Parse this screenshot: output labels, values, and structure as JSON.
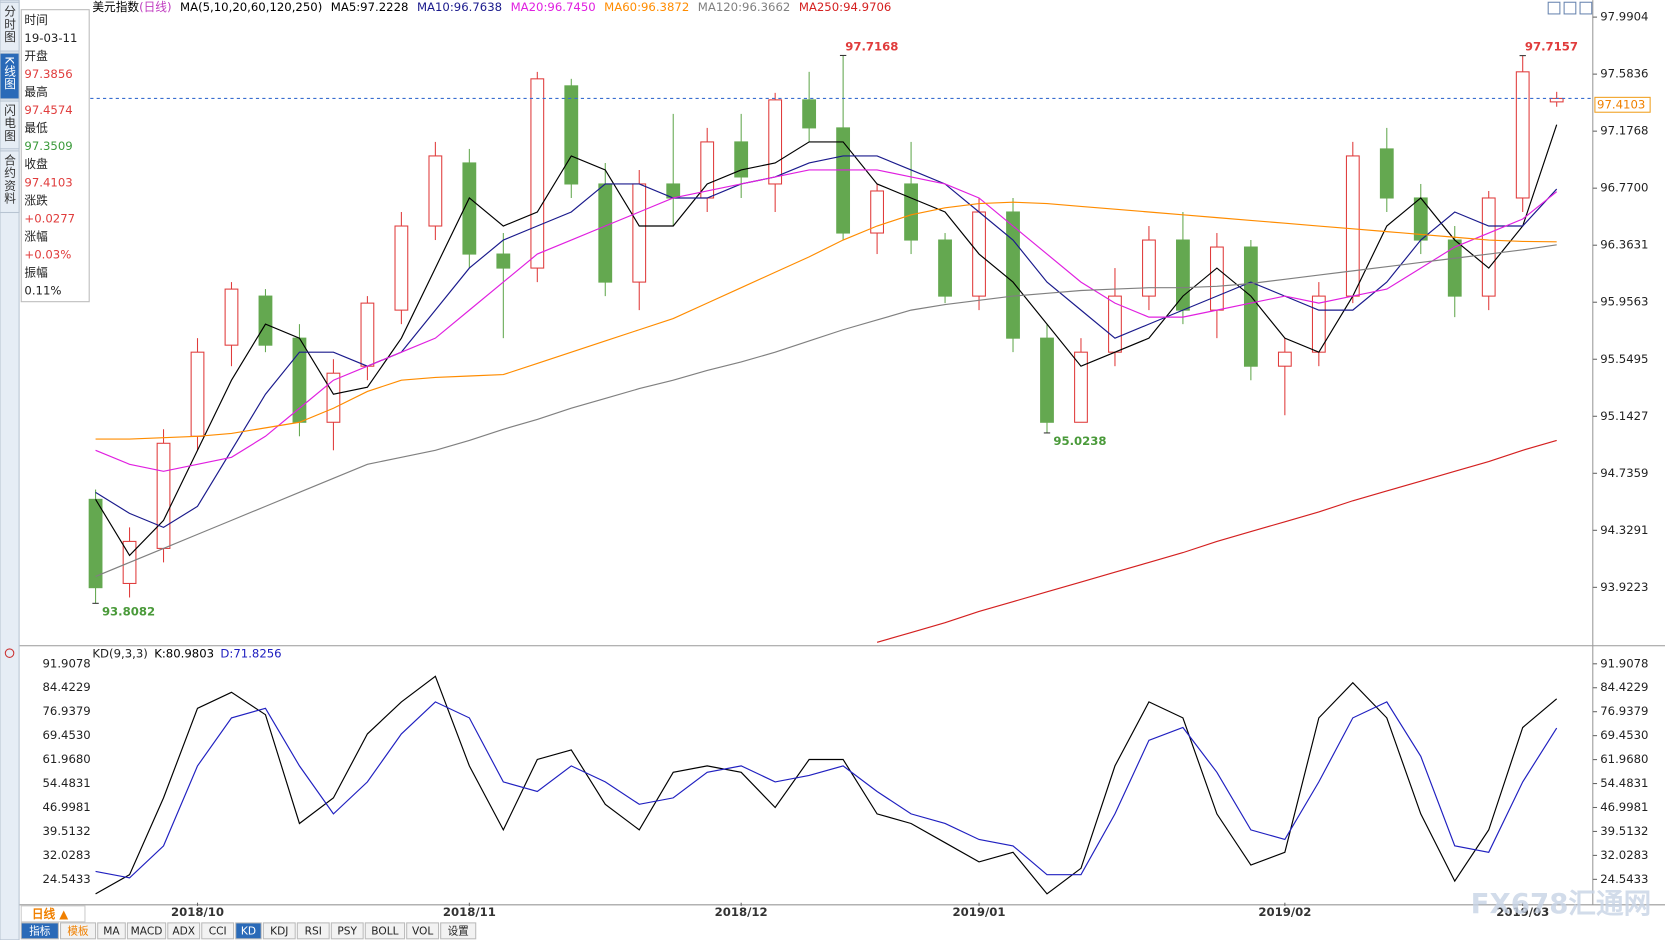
{
  "header": {
    "title": "美元指数",
    "period": "(日线)",
    "ma_params": "MA(5,10,20,60,120,250)"
  },
  "side_tabs": [
    "分时图",
    "K线图",
    "闪电图",
    "合约资料"
  ],
  "info_panel": {
    "time_label": "时间",
    "time": "19-03-11",
    "open_label": "开盘",
    "high_label": "最高",
    "low_label": "最低",
    "close_label": "收盘",
    "change_label": "涨跌",
    "change": "+0.0277",
    "pct_label": "涨幅",
    "pct": "+0.03%",
    "amp_label": "振幅",
    "amp": "0.11%"
  },
  "chart_data": [
    {
      "type": "candlestick",
      "categories": [
        null,
        null,
        null,
        "2018/10",
        null,
        null,
        null,
        null,
        null,
        null,
        null,
        "2018/11",
        null,
        null,
        null,
        null,
        null,
        null,
        null,
        "2018/12",
        null,
        null,
        null,
        null,
        null,
        null,
        "2019/01",
        null,
        null,
        null,
        null,
        null,
        null,
        null,
        null,
        "2019/02",
        null,
        null,
        null,
        null,
        null,
        null,
        "2019/03",
        null
      ],
      "candles": [
        [
          94.55,
          94.62,
          93.8082,
          93.92
        ],
        [
          93.95,
          94.35,
          93.85,
          94.25
        ],
        [
          94.2,
          95.05,
          94.1,
          94.95
        ],
        [
          95.0,
          95.7,
          94.9,
          95.6
        ],
        [
          95.65,
          96.1,
          95.5,
          96.05
        ],
        [
          96.0,
          96.05,
          95.6,
          95.65
        ],
        [
          95.7,
          95.8,
          95.0,
          95.1
        ],
        [
          95.1,
          95.55,
          94.9,
          95.45
        ],
        [
          95.5,
          96.0,
          95.4,
          95.95
        ],
        [
          95.9,
          96.6,
          95.8,
          96.5
        ],
        [
          96.5,
          97.1,
          96.4,
          97.0
        ],
        [
          96.95,
          97.05,
          96.2,
          96.3
        ],
        [
          96.3,
          96.45,
          95.7,
          96.2
        ],
        [
          96.2,
          97.6,
          96.1,
          97.55
        ],
        [
          97.5,
          97.55,
          96.7,
          96.8
        ],
        [
          96.8,
          96.95,
          96.0,
          96.1
        ],
        [
          96.1,
          96.9,
          95.9,
          96.8
        ],
        [
          96.8,
          97.3,
          96.5,
          96.7
        ],
        [
          96.7,
          97.2,
          96.6,
          97.1
        ],
        [
          97.1,
          97.3,
          96.7,
          96.85
        ],
        [
          96.8,
          97.45,
          96.6,
          97.4
        ],
        [
          97.4,
          97.6,
          97.1,
          97.2
        ],
        [
          97.2,
          97.7168,
          96.4,
          96.45
        ],
        [
          96.45,
          96.8,
          96.3,
          96.75
        ],
        [
          96.8,
          97.1,
          96.3,
          96.4
        ],
        [
          96.4,
          96.45,
          95.95,
          96.0
        ],
        [
          96.0,
          96.7,
          95.9,
          96.6
        ],
        [
          96.6,
          96.7,
          95.6,
          95.7
        ],
        [
          95.7,
          95.8,
          95.0238,
          95.1
        ],
        [
          95.1,
          95.7,
          95.1,
          95.6
        ],
        [
          95.6,
          96.2,
          95.5,
          96.0
        ],
        [
          96.0,
          96.5,
          95.9,
          96.4
        ],
        [
          96.4,
          96.6,
          95.8,
          95.9
        ],
        [
          95.9,
          96.45,
          95.7,
          96.35
        ],
        [
          96.35,
          96.4,
          95.4,
          95.5
        ],
        [
          95.5,
          95.7,
          95.15,
          95.6
        ],
        [
          95.6,
          96.1,
          95.5,
          96.0
        ],
        [
          96.0,
          97.1,
          95.95,
          97.0
        ],
        [
          97.05,
          97.2,
          96.6,
          96.7
        ],
        [
          96.7,
          96.8,
          96.3,
          96.4
        ],
        [
          96.4,
          96.5,
          95.85,
          96.0
        ],
        [
          96.0,
          96.75,
          95.9,
          96.7
        ],
        [
          96.7,
          97.7157,
          96.6,
          97.6
        ],
        [
          97.3856,
          97.4574,
          97.3509,
          97.4103
        ]
      ],
      "up_color": "#e03c3c",
      "down_color": "#64a850",
      "ylim": [
        93.5284,
        98.0055
      ],
      "yticks": [
        97.9904,
        97.5836,
        97.1768,
        {
          "value": 96.77,
          "label": "96.7700"
        },
        96.3631,
        95.9563,
        95.5495,
        95.1427,
        94.7359,
        94.3291,
        93.9223
      ],
      "grid": false,
      "series": [
        {
          "name": "MA5:97.2228",
          "color": "#000000",
          "values": [
            94.55,
            94.15,
            94.4,
            94.9,
            95.4,
            95.8,
            95.7,
            95.3,
            95.35,
            95.7,
            96.2,
            96.7,
            96.5,
            96.6,
            97.0,
            96.9,
            96.5,
            96.5,
            96.8,
            96.9,
            96.95,
            97.1,
            97.1,
            96.8,
            96.7,
            96.6,
            96.3,
            96.1,
            95.8,
            95.5,
            95.6,
            95.7,
            96.0,
            96.2,
            96.0,
            95.7,
            95.6,
            96.0,
            96.5,
            96.7,
            96.4,
            96.2,
            96.5,
            97.2228
          ]
        },
        {
          "name": "MA10:96.7638",
          "color": "#1a1a8c",
          "values": [
            94.6,
            94.45,
            94.35,
            94.5,
            94.9,
            95.3,
            95.6,
            95.6,
            95.5,
            95.6,
            95.9,
            96.2,
            96.4,
            96.5,
            96.6,
            96.8,
            96.8,
            96.7,
            96.7,
            96.8,
            96.85,
            96.95,
            97.0,
            97.0,
            96.9,
            96.8,
            96.6,
            96.4,
            96.1,
            95.9,
            95.7,
            95.8,
            95.9,
            96.0,
            96.1,
            96.0,
            95.9,
            95.9,
            96.1,
            96.4,
            96.6,
            96.5,
            96.5,
            96.7638
          ]
        },
        {
          "name": "MA20:96.7450",
          "color": "#e020e0",
          "values": [
            94.9,
            94.8,
            94.75,
            94.8,
            94.85,
            95.0,
            95.2,
            95.4,
            95.5,
            95.6,
            95.7,
            95.9,
            96.1,
            96.3,
            96.4,
            96.5,
            96.6,
            96.7,
            96.75,
            96.8,
            96.85,
            96.9,
            96.9,
            96.9,
            96.85,
            96.8,
            96.7,
            96.5,
            96.3,
            96.1,
            95.95,
            95.85,
            95.85,
            95.9,
            95.95,
            96.0,
            95.95,
            96.0,
            96.05,
            96.2,
            96.35,
            96.45,
            96.55,
            96.745
          ]
        },
        {
          "name": "MA60:96.3872",
          "color": "#ff8c00",
          "values": [
            94.98,
            94.98,
            94.99,
            95.0,
            95.02,
            95.06,
            95.1,
            95.2,
            95.32,
            95.4,
            95.42,
            95.43,
            95.44,
            95.52,
            95.6,
            95.68,
            95.76,
            95.84,
            95.95,
            96.06,
            96.17,
            96.28,
            96.4,
            96.5,
            96.58,
            96.63,
            96.66,
            96.67,
            96.66,
            96.64,
            96.62,
            96.6,
            96.58,
            96.56,
            96.54,
            96.52,
            96.5,
            96.48,
            96.46,
            96.44,
            96.42,
            96.4,
            96.39,
            96.3872
          ]
        },
        {
          "name": "MA120:96.3662",
          "color": "#808080",
          "values": [
            94.0,
            94.1,
            94.2,
            94.3,
            94.4,
            94.5,
            94.6,
            94.7,
            94.8,
            94.85,
            94.9,
            94.97,
            95.05,
            95.12,
            95.2,
            95.27,
            95.34,
            95.4,
            95.47,
            95.53,
            95.6,
            95.68,
            95.76,
            95.83,
            95.9,
            95.94,
            95.97,
            96.0,
            96.02,
            96.04,
            96.05,
            96.06,
            96.06,
            96.07,
            96.09,
            96.12,
            96.15,
            96.18,
            96.21,
            96.24,
            96.27,
            96.3,
            96.33,
            96.3662
          ]
        },
        {
          "name": "MA250:94.9706",
          "color": "#d42020",
          "values": [
            null,
            null,
            null,
            null,
            null,
            null,
            null,
            null,
            null,
            null,
            null,
            null,
            null,
            null,
            null,
            null,
            null,
            null,
            null,
            null,
            null,
            null,
            null,
            93.53,
            93.6,
            93.67,
            93.75,
            93.82,
            93.89,
            93.96,
            94.03,
            94.1,
            94.17,
            94.25,
            94.32,
            94.39,
            94.46,
            94.54,
            94.61,
            94.68,
            94.75,
            94.82,
            94.9,
            94.9706
          ]
        }
      ]
    },
    {
      "type": "line",
      "title": "KD(9,3,3)",
      "ylim": [
        17.24,
        93.57
      ],
      "yticks": [
        91.9078,
        84.4229,
        76.9379,
        {
          "value": 69.453,
          "label": "69.4530"
        },
        {
          "value": 61.968,
          "label": "61.9680"
        },
        54.4831,
        46.9981,
        39.5132,
        32.0283,
        24.5433
      ],
      "series": [
        {
          "name": "K:80.9803",
          "color": "#000000",
          "values": [
            20,
            26,
            50,
            78,
            83,
            76,
            42,
            50,
            70,
            80,
            88,
            60,
            40,
            62,
            65,
            48,
            40,
            58,
            60,
            58,
            47,
            62,
            62,
            45,
            42,
            36,
            30,
            33,
            20,
            28,
            60,
            80,
            75,
            45,
            29,
            33,
            75,
            86,
            75,
            45,
            24,
            40,
            72,
            80.9803
          ]
        },
        {
          "name": "D:71.8256",
          "color": "#2020c0",
          "values": [
            27,
            25,
            35,
            60,
            75,
            78,
            60,
            45,
            55,
            70,
            80,
            75,
            55,
            52,
            60,
            55,
            48,
            50,
            58,
            60,
            55,
            57,
            60,
            52,
            45,
            42,
            37,
            35,
            26,
            26,
            45,
            68,
            72,
            58,
            40,
            37,
            55,
            75,
            80,
            63,
            35,
            33,
            55,
            71.8256
          ]
        }
      ]
    }
  ],
  "bottom_bar": {
    "period_tab": "日线 ▲",
    "tabs": [
      "指标",
      "模板",
      "MA",
      "MACD",
      "ADX",
      "CCI",
      "KD",
      "KDJ",
      "RSI",
      "PSY",
      "BOLL",
      "VOL",
      "设置"
    ]
  },
  "watermark": "FX678汇通网"
}
